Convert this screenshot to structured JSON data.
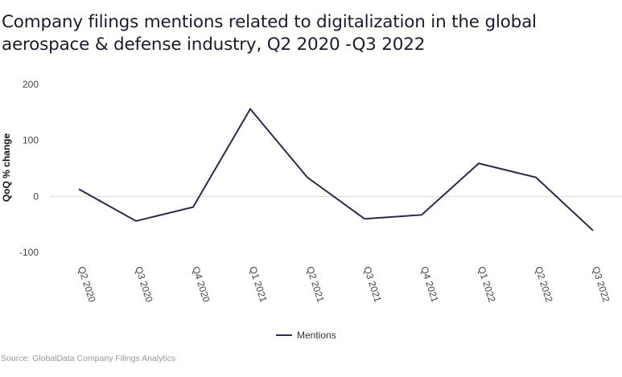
{
  "chart_data": {
    "type": "line",
    "title": "Company filings mentions related to digitalization in the global aerospace & defense industry, Q2 2020 -Q3 2022",
    "xlabel": "",
    "ylabel": "QoQ % change",
    "categories": [
      "Q2 2020",
      "Q3 2020",
      "Q4 2020",
      "Q1 2021",
      "Q2 2021",
      "Q3 2021",
      "Q4 2021",
      "Q1 2022",
      "Q2 2022",
      "Q3 2022"
    ],
    "series": [
      {
        "name": "Mentions",
        "color": "#2a2a4a",
        "values": [
          13,
          -44,
          -19,
          156,
          34,
          -40,
          -33,
          59,
          34,
          -61
        ]
      }
    ],
    "ylim": [
      -100,
      200
    ],
    "yticks": [
      200,
      100,
      0,
      -100
    ],
    "grid": "zero-line only",
    "legend": "bottom-center"
  },
  "source": "Source: GlobalData Company Filings Analytics"
}
